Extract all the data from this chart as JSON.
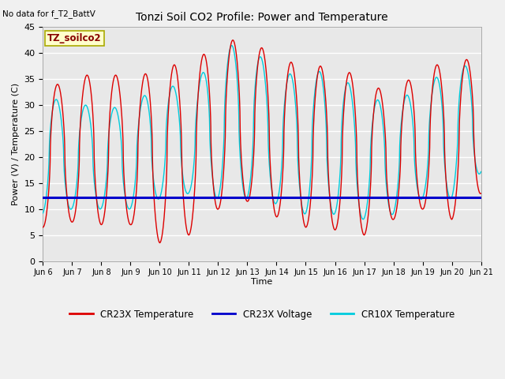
{
  "title": "Tonzi Soil CO2 Profile: Power and Temperature",
  "no_data_text": "No data for f_T2_BattV",
  "ylabel": "Power (V) / Temperature (C)",
  "xlabel": "Time",
  "ylim": [
    0,
    45
  ],
  "yticks": [
    0,
    5,
    10,
    15,
    20,
    25,
    30,
    35,
    40,
    45
  ],
  "x_tick_labels": [
    "Jun 6",
    "Jun 7",
    "Jun 8",
    "Jun 9",
    "Jun 10",
    "Jun 11",
    "Jun 12",
    "Jun 13",
    "Jun 14",
    "Jun 15",
    "Jun 16",
    "Jun 17",
    "Jun 18",
    "Jun 19",
    "Jun 20",
    "Jun 21"
  ],
  "background_color": "#f0f0f0",
  "plot_bg_color": "#e8e8e8",
  "grid_color": "#d8d8d8",
  "cr23x_temp_color": "#dd0000",
  "cr23x_volt_color": "#0000cc",
  "cr10x_temp_color": "#00ccdd",
  "legend_box_color": "#ffffcc",
  "legend_box_edge": "#aaaa00",
  "annotation_label": "TZ_soilco2",
  "voltage_value": 12.2,
  "cr23x_peaks": [
    34,
    34,
    37.5,
    34,
    38,
    37.5,
    42,
    43,
    39,
    37.5,
    37.5,
    35,
    31.5,
    38,
    37.5,
    40
  ],
  "cr23x_troughs": [
    6.5,
    7.5,
    7,
    7,
    3.5,
    5,
    10,
    11.5,
    8.5,
    6.5,
    6,
    5,
    8,
    10,
    8,
    13
  ],
  "cr10x_peaks": [
    32,
    30,
    30,
    29,
    35,
    32,
    41,
    42,
    36,
    36,
    37,
    31,
    31,
    33,
    38,
    37
  ],
  "cr10x_troughs": [
    9,
    10,
    10,
    10,
    12,
    13,
    12,
    12,
    11,
    9,
    9,
    8,
    9,
    12,
    12,
    17
  ]
}
